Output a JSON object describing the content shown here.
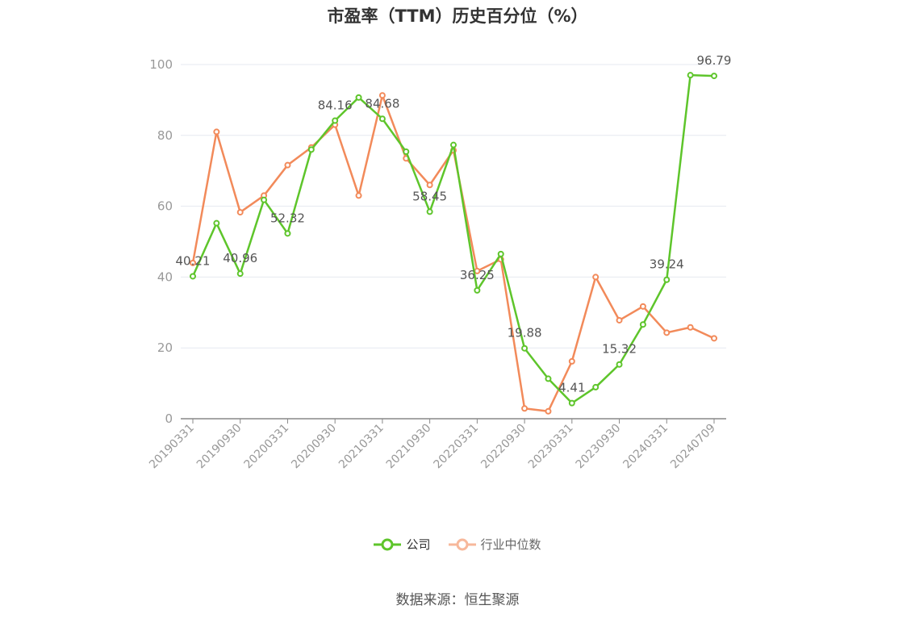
{
  "title": "市盈率（TTM）历史百分位（%）",
  "source": "数据来源：恒生聚源",
  "colors": {
    "company": "#5ec52b",
    "industry": "#f28a5a",
    "industry_legend": "#f7b89b",
    "grid": "#e6e9f0",
    "axis": "#888888"
  },
  "chart_data": {
    "type": "line",
    "title": "市盈率（TTM）历史百分位（%）",
    "ylim": [
      0,
      100
    ],
    "yticks": [
      0,
      20,
      40,
      60,
      80,
      100
    ],
    "x": [
      "20190331",
      "20190630",
      "20190930",
      "20191231",
      "20200331",
      "20200630",
      "20200930",
      "20201231",
      "20210331",
      "20210630",
      "20210930",
      "20211231",
      "20220331",
      "20220630",
      "20220930",
      "20221231",
      "20230331",
      "20230630",
      "20230930",
      "20231231",
      "20240331",
      "20240630",
      "20240709"
    ],
    "xtick_labels": [
      "20190331",
      "20190930",
      "20200331",
      "20200930",
      "20210331",
      "20210930",
      "20220331",
      "20220930",
      "20230331",
      "20230930",
      "20240331",
      "20240709"
    ],
    "grid": true,
    "legend": "bottom-center",
    "series": [
      {
        "name": "公司",
        "color": "#5ec52b",
        "values": [
          40.21,
          55.2,
          40.96,
          61.8,
          52.32,
          76.0,
          84.16,
          90.7,
          84.68,
          75.4,
          58.45,
          77.3,
          36.25,
          46.5,
          19.88,
          11.3,
          4.41,
          8.9,
          15.32,
          26.6,
          39.24,
          97.0,
          96.79
        ],
        "labels": [
          "40.21",
          "",
          "40.96",
          "",
          "52.32",
          "",
          "84.16",
          "",
          "84.68",
          "",
          "58.45",
          "",
          "36.25",
          "",
          "19.88",
          "",
          "4.41",
          "",
          "15.32",
          "",
          "39.24",
          "",
          "96.79"
        ]
      },
      {
        "name": "行业中位数",
        "color": "#f28a5a",
        "values": [
          44.0,
          81.0,
          58.3,
          63.0,
          71.6,
          76.6,
          83.0,
          63.0,
          91.3,
          73.5,
          66.0,
          75.8,
          41.7,
          45.0,
          2.9,
          2.1,
          16.2,
          40.0,
          27.8,
          31.7,
          24.3,
          25.8,
          22.7
        ]
      }
    ]
  }
}
